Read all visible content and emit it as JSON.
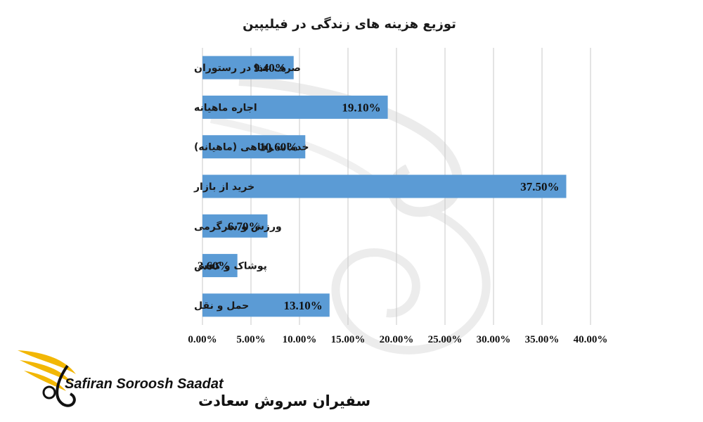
{
  "chart_data": {
    "type": "bar",
    "orientation": "horizontal",
    "title": "توزیع هزینه های زندگی در فیلیپین",
    "categories": [
      "صرف غذا در رستوران",
      "اجاره ماهیانه",
      "خدمات رفاهی (ماهیانه)",
      "خرید از بازار",
      "ورزش و سرگرمی",
      "پوشاک و کفش",
      "حمل و نقل"
    ],
    "values": [
      9.4,
      19.1,
      10.6,
      37.5,
      6.7,
      3.6,
      13.1
    ],
    "value_labels": [
      "9.40%",
      "19.10%",
      "10.60%",
      "37.50%",
      "6.70%",
      "3.60%",
      "13.10%"
    ],
    "xlim": [
      0,
      40
    ],
    "x_ticks": [
      0,
      5,
      10,
      15,
      20,
      25,
      30,
      35,
      40
    ],
    "x_tick_labels": [
      "0.00%",
      "5.00%",
      "10.00%",
      "15.00%",
      "20.00%",
      "25.00%",
      "30.00%",
      "35.00%",
      "40.00%"
    ],
    "grid": "vertical",
    "bar_color": "#5b9bd5"
  },
  "brand": {
    "name_en": "Safiran Soroosh Saadat",
    "name_fa": "سفیران سروش سعادت",
    "accent_color": "#f2b705"
  }
}
